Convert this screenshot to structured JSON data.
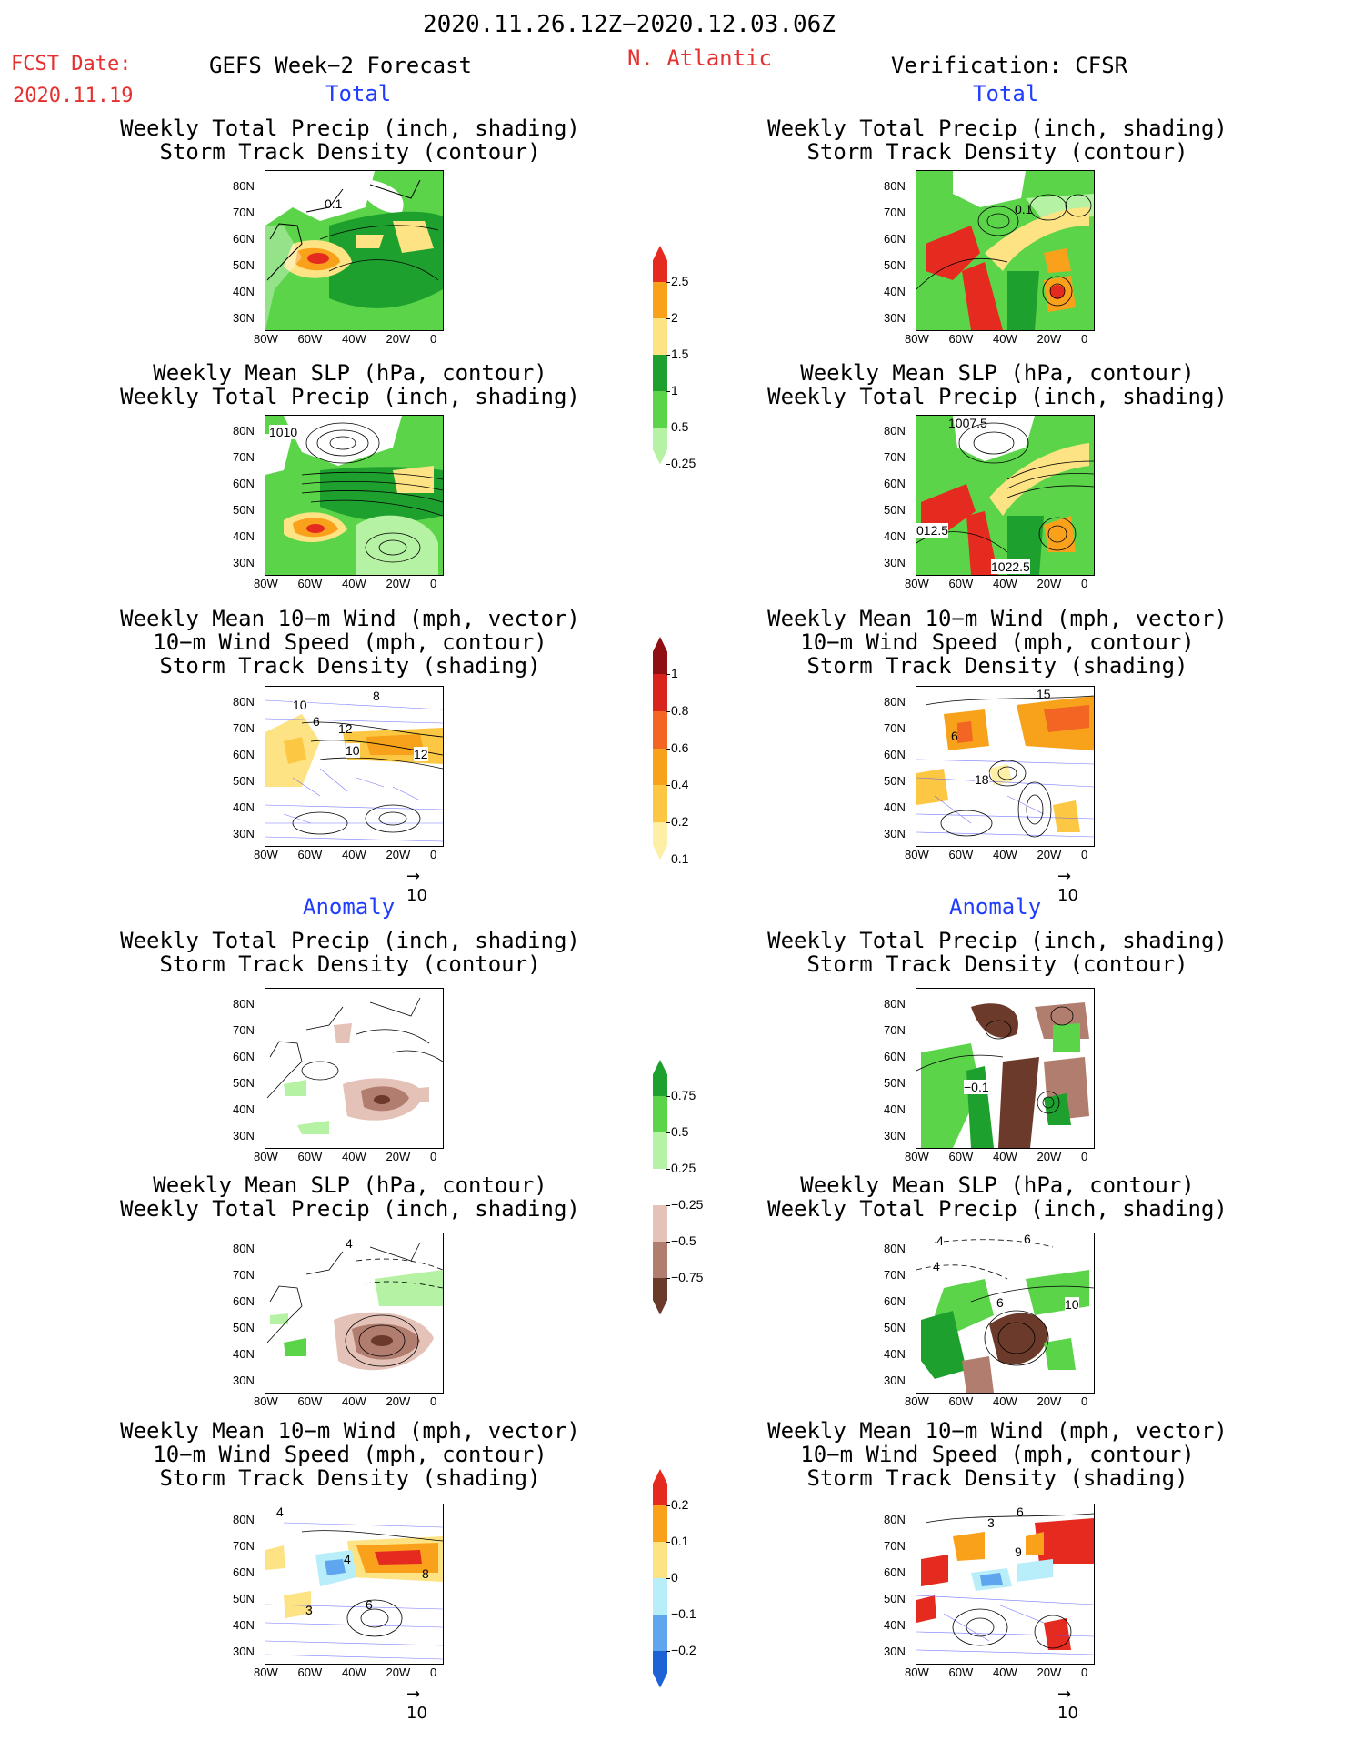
{
  "header": {
    "date_range": "2020.11.26.12Z−2020.12.03.06Z",
    "fcst_label": "FCST Date:",
    "fcst_date": "2020.11.19",
    "left_model": "GEFS Week−2 Forecast",
    "region": "N. Atlantic",
    "right_model": "Verification: CFSR"
  },
  "sections": {
    "total": "Total",
    "anomaly": "Anomaly"
  },
  "titles": {
    "precip_track": [
      "Weekly Total Precip (inch, shading)",
      "Storm Track Density (contour)"
    ],
    "slp_precip": [
      "Weekly Mean SLP (hPa, contour)",
      "Weekly Total Precip (inch, shading)"
    ],
    "wind": [
      "Weekly Mean 10−m Wind (mph, vector)",
      "10−m Wind Speed (mph, contour)",
      "Storm Track Density (shading)"
    ]
  },
  "axes": {
    "lat_ticks": [
      "80N",
      "70N",
      "60N",
      "50N",
      "40N",
      "30N"
    ],
    "lon_ticks": [
      "80W",
      "60W",
      "40W",
      "20W",
      "0"
    ]
  },
  "vector_ref": "10",
  "contour_labels": {
    "gefs_total_precip": [
      "0.1"
    ],
    "cfsr_total_precip": [
      "0.1"
    ],
    "gefs_total_slp": [
      "1010"
    ],
    "cfsr_total_slp": [
      "1007.5",
      "012.5",
      "1022.5"
    ],
    "gefs_total_wind": [
      "10",
      "6",
      "12",
      "10",
      "12",
      "8"
    ],
    "cfsr_total_wind": [
      "15",
      "6",
      "18"
    ],
    "cfsr_anom_precip": [
      "−0.1"
    ],
    "gefs_anom_slp": [
      "4"
    ],
    "cfsr_anom_slp": [
      "4",
      "6",
      "4",
      "6",
      "10"
    ],
    "gefs_anom_wind": [
      "4",
      "4",
      "8",
      "6",
      "3"
    ],
    "cfsr_anom_wind": [
      "3",
      "6",
      "9"
    ]
  },
  "colorbars": {
    "precip_total": {
      "labels": [
        "2.5",
        "2",
        "1.5",
        "1",
        "0.5",
        "0.25"
      ],
      "colors": [
        "#e52b1f",
        "#f9a11b",
        "#fde383",
        "#1ea02e",
        "#5bd44a",
        "#b6f2a4"
      ]
    },
    "track_total": {
      "labels": [
        "1",
        "0.8",
        "0.6",
        "0.4",
        "0.2",
        "0.1"
      ],
      "colors": [
        "#8e1012",
        "#d9241e",
        "#f26522",
        "#f8a11b",
        "#fcc844",
        "#fdf0a6"
      ]
    },
    "precip_anom": {
      "labels": [
        "0.75",
        "0.5",
        "0.25",
        "−0.25",
        "−0.5",
        "−0.75"
      ],
      "colors": [
        "#1ea02e",
        "#5bd44a",
        "#b6f2a4",
        "#ffffff",
        "#e4c2b8",
        "#b07d6e",
        "#6b3a2a"
      ]
    },
    "track_anom": {
      "labels": [
        "0.2",
        "0.1",
        "0",
        "−0.1",
        "−0.2"
      ],
      "colors": [
        "#e52b1f",
        "#f9a11b",
        "#fde383",
        "#b8eefa",
        "#5fa6ee",
        "#1f62d6"
      ]
    }
  }
}
